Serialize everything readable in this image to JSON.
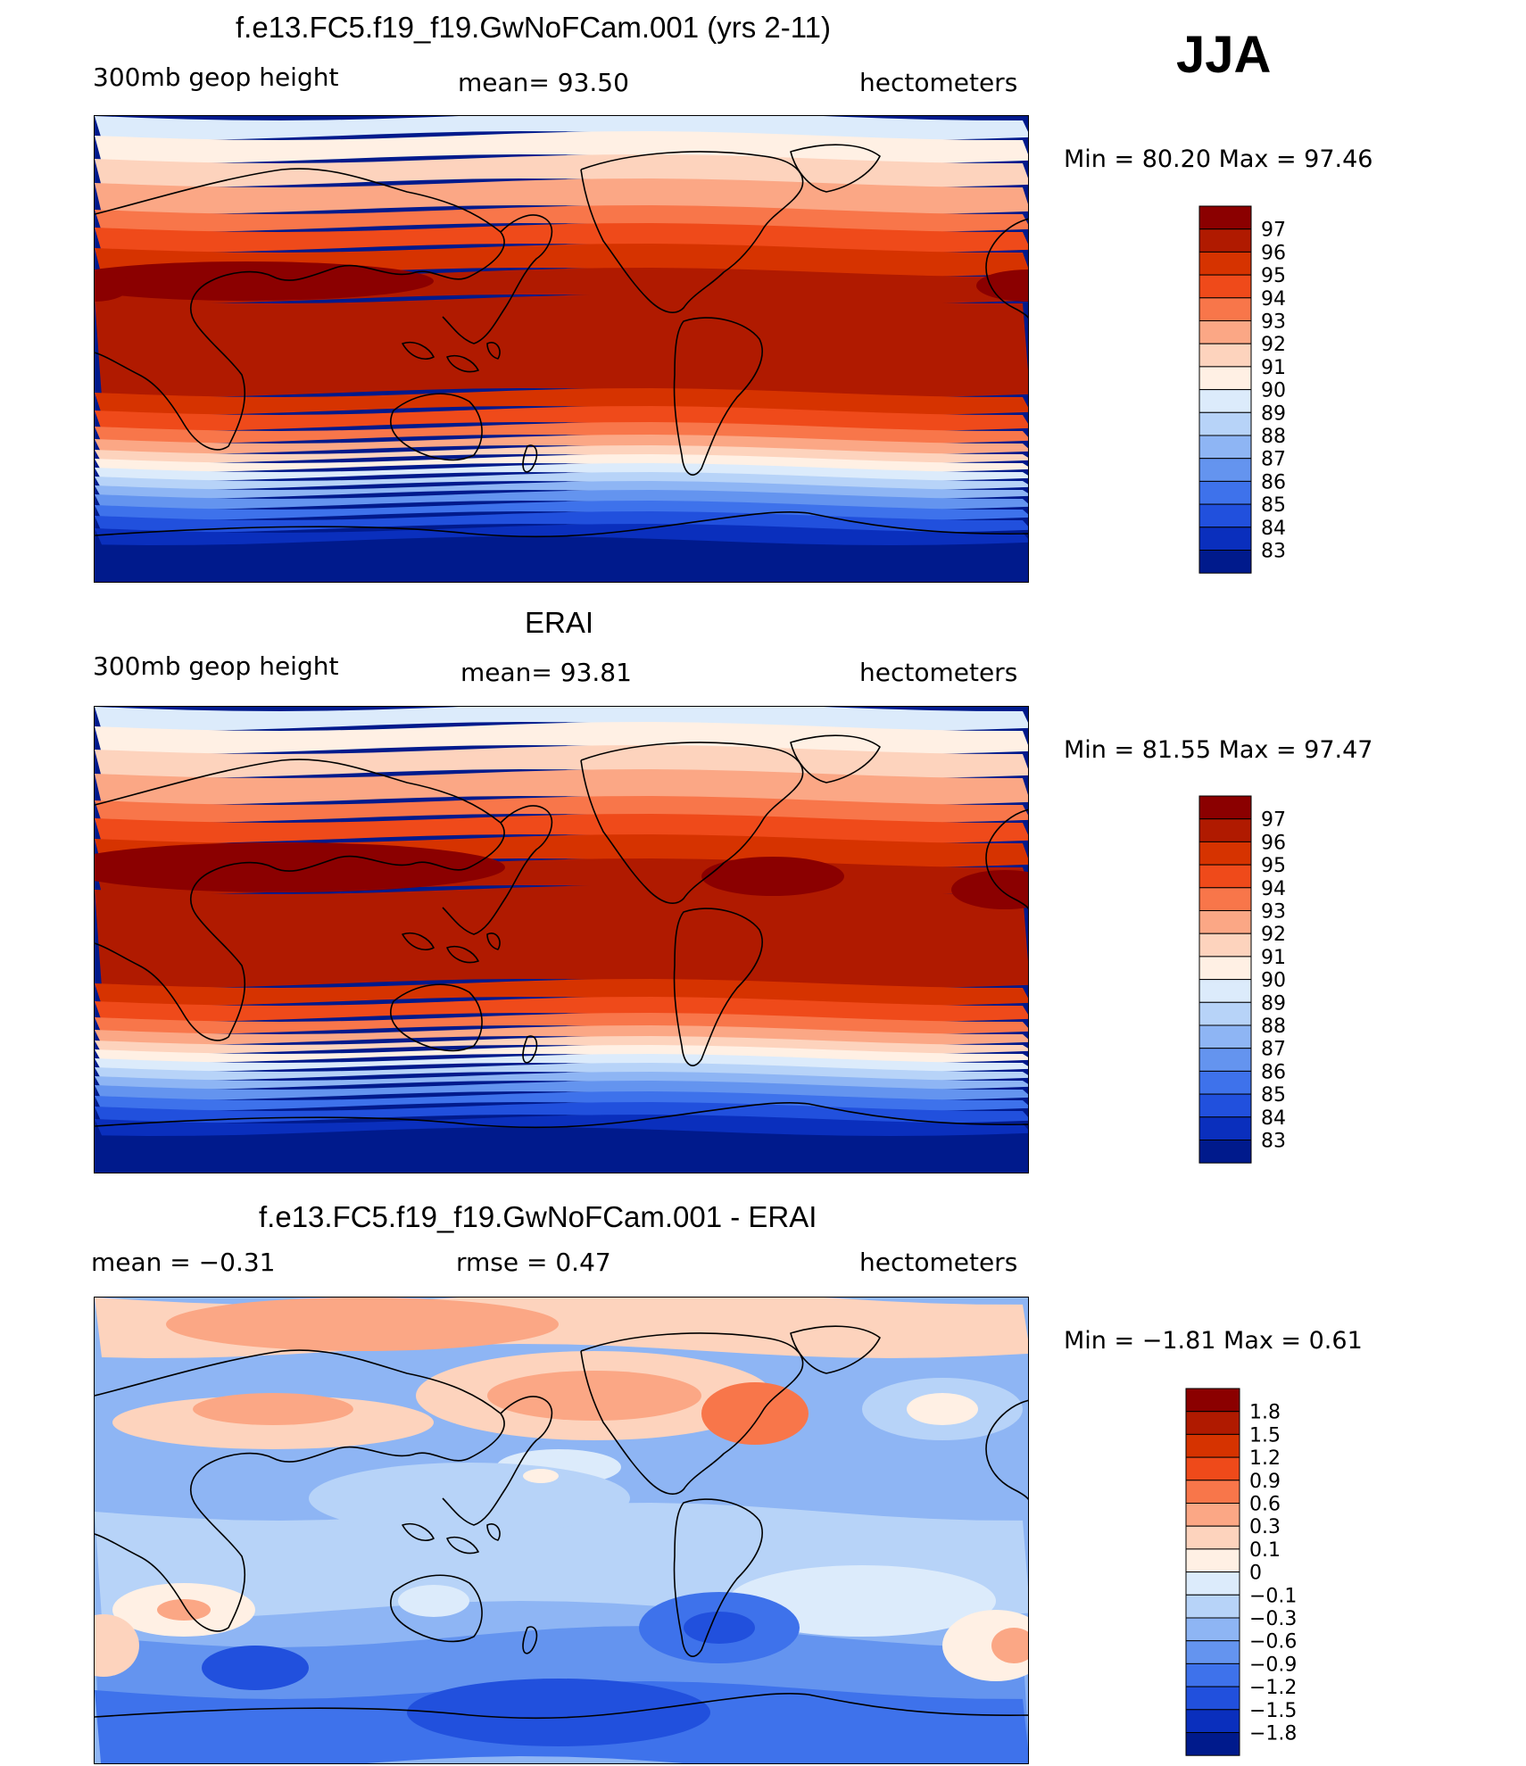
{
  "season": "JJA",
  "panels": [
    {
      "id": "model",
      "title": "f.e13.FC5.f19_f19.GwNoFCam.001 (yrs 2-11)",
      "left_label": "300mb  geop  height",
      "center_label": "mean=   93.50",
      "right_label": "hectometers",
      "minmax_label": "Min  =    80.20  Max  =    97.46",
      "field": "model"
    },
    {
      "id": "obs",
      "title": "ERAI",
      "left_label": "300mb  geop  height",
      "center_label": "mean=   93.81",
      "right_label": "hectometers",
      "minmax_label": "Min  =    81.55  Max  =    97.47",
      "field": "obs"
    },
    {
      "id": "diff",
      "title": "f.e13.FC5.f19_f19.GwNoFCam.001 - ERAI",
      "left_label": "mean  =    −0.31",
      "center_label": "rmse  =     0.47",
      "right_label": "hectometers",
      "minmax_label": "Min  =    −1.81  Max  =      0.61",
      "field": "diff"
    }
  ],
  "colorbars": {
    "height": {
      "labels": [
        "97",
        "96",
        "95",
        "94",
        "93",
        "92",
        "91",
        "90",
        "89",
        "88",
        "87",
        "86",
        "85",
        "84",
        "83"
      ],
      "colors": [
        "#8b0000",
        "#b01a00",
        "#d63300",
        "#ef4a1a",
        "#f8764a",
        "#fba785",
        "#fdd3bd",
        "#fff0e4",
        "#dcebfb",
        "#b7d3f8",
        "#8eb5f4",
        "#6494ef",
        "#3e72eb",
        "#2150dd",
        "#0a2fbd",
        "#001a8c"
      ]
    },
    "diff": {
      "labels": [
        "1.8",
        "1.5",
        "1.2",
        "0.9",
        "0.6",
        "0.3",
        "0.1",
        "0",
        "−0.1",
        "−0.3",
        "−0.6",
        "−0.9",
        "−1.2",
        "−1.5",
        "−1.8"
      ],
      "colors": [
        "#8b0000",
        "#b01a00",
        "#d63300",
        "#ef4a1a",
        "#f8764a",
        "#fba785",
        "#fdd3bd",
        "#fff0e4",
        "#dcebfb",
        "#b7d3f8",
        "#8eb5f4",
        "#6494ef",
        "#3e72eb",
        "#2150dd",
        "#0a2fbd",
        "#001a8c"
      ]
    }
  }
}
